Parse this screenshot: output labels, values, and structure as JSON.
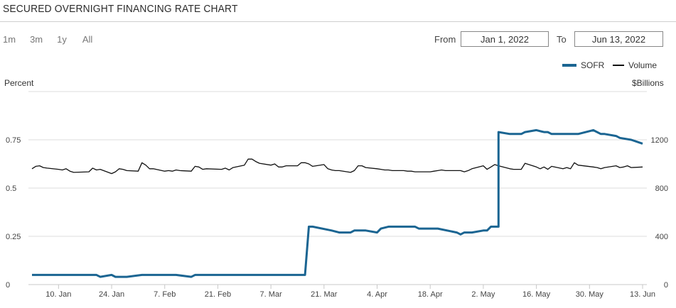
{
  "title": "SECURED OVERNIGHT FINANCING RATE CHART",
  "range_buttons": [
    "1m",
    "3m",
    "1y",
    "All"
  ],
  "date_range": {
    "from_label": "From",
    "from_value": "Jan 1, 2022",
    "to_label": "To",
    "to_value": "Jun 13, 2022"
  },
  "colors": {
    "sofr": "#1b6592",
    "volume": "#111111",
    "grid": "#dddddd"
  },
  "chart_data": {
    "type": "line",
    "ylabel_left": "Percent",
    "ylabel_right": "$Billions",
    "y_left_ticks": [
      "0",
      "0.25",
      "0.5",
      "0.75"
    ],
    "y_left_values": [
      0,
      0.25,
      0.5,
      0.75
    ],
    "y_left_range": [
      0,
      1.0
    ],
    "y_right_ticks": [
      "0",
      "400",
      "800",
      "1200"
    ],
    "y_right_values": [
      0,
      400,
      800,
      1200
    ],
    "y_right_range": [
      0,
      1600
    ],
    "x_ticks": [
      "10. Jan",
      "24. Jan",
      "7. Feb",
      "21. Feb",
      "7. Mar",
      "21. Mar",
      "4. Apr",
      "18. Apr",
      "2. May",
      "16. May",
      "30. May",
      "13. Jun"
    ],
    "x_tick_dates": [
      "2022-01-10",
      "2022-01-24",
      "2022-02-07",
      "2022-02-21",
      "2022-03-07",
      "2022-03-21",
      "2022-04-04",
      "2022-04-18",
      "2022-05-02",
      "2022-05-16",
      "2022-05-30",
      "2022-06-13"
    ],
    "x_range": [
      "2022-01-03",
      "2022-06-13"
    ],
    "legend_position": "top-right",
    "grid": "horizontal",
    "series": [
      {
        "name": "SOFR",
        "axis": "left",
        "points": [
          [
            "2022-01-03",
            0.05
          ],
          [
            "2022-01-10",
            0.05
          ],
          [
            "2022-01-20",
            0.05
          ],
          [
            "2022-01-21",
            0.04
          ],
          [
            "2022-01-24",
            0.05
          ],
          [
            "2022-01-25",
            0.04
          ],
          [
            "2022-01-27",
            0.04
          ],
          [
            "2022-01-28",
            0.04
          ],
          [
            "2022-02-01",
            0.05
          ],
          [
            "2022-02-10",
            0.05
          ],
          [
            "2022-02-14",
            0.04
          ],
          [
            "2022-02-15",
            0.05
          ],
          [
            "2022-03-01",
            0.05
          ],
          [
            "2022-03-16",
            0.05
          ],
          [
            "2022-03-17",
            0.3
          ],
          [
            "2022-03-18",
            0.3
          ],
          [
            "2022-03-23",
            0.28
          ],
          [
            "2022-03-25",
            0.27
          ],
          [
            "2022-03-28",
            0.27
          ],
          [
            "2022-03-29",
            0.28
          ],
          [
            "2022-04-01",
            0.28
          ],
          [
            "2022-04-04",
            0.27
          ],
          [
            "2022-04-05",
            0.29
          ],
          [
            "2022-04-07",
            0.3
          ],
          [
            "2022-04-13",
            0.3
          ],
          [
            "2022-04-14",
            0.3
          ],
          [
            "2022-04-15",
            0.29
          ],
          [
            "2022-04-20",
            0.29
          ],
          [
            "2022-04-25",
            0.27
          ],
          [
            "2022-04-26",
            0.26
          ],
          [
            "2022-04-27",
            0.27
          ],
          [
            "2022-04-29",
            0.27
          ],
          [
            "2022-05-02",
            0.28
          ],
          [
            "2022-05-03",
            0.28
          ],
          [
            "2022-05-04",
            0.3
          ],
          [
            "2022-05-05",
            0.3
          ],
          [
            "2022-05-06",
            0.3
          ],
          [
            "2022-05-06",
            0.79
          ],
          [
            "2022-05-09",
            0.78
          ],
          [
            "2022-05-10",
            0.78
          ],
          [
            "2022-05-12",
            0.78
          ],
          [
            "2022-05-13",
            0.79
          ],
          [
            "2022-05-16",
            0.8
          ],
          [
            "2022-05-18",
            0.79
          ],
          [
            "2022-05-19",
            0.79
          ],
          [
            "2022-05-20",
            0.78
          ],
          [
            "2022-05-27",
            0.78
          ],
          [
            "2022-05-31",
            0.8
          ],
          [
            "2022-06-02",
            0.78
          ],
          [
            "2022-06-03",
            0.78
          ],
          [
            "2022-06-06",
            0.77
          ],
          [
            "2022-06-07",
            0.76
          ],
          [
            "2022-06-10",
            0.75
          ],
          [
            "2022-06-13",
            0.73
          ]
        ]
      },
      {
        "name": "Volume",
        "axis": "right",
        "points": [
          [
            "2022-01-03",
            960
          ],
          [
            "2022-01-04",
            980
          ],
          [
            "2022-01-05",
            985
          ],
          [
            "2022-01-06",
            970
          ],
          [
            "2022-01-07",
            965
          ],
          [
            "2022-01-10",
            955
          ],
          [
            "2022-01-11",
            950
          ],
          [
            "2022-01-12",
            960
          ],
          [
            "2022-01-13",
            940
          ],
          [
            "2022-01-14",
            930
          ],
          [
            "2022-01-18",
            935
          ],
          [
            "2022-01-19",
            965
          ],
          [
            "2022-01-20",
            950
          ],
          [
            "2022-01-21",
            955
          ],
          [
            "2022-01-24",
            920
          ],
          [
            "2022-01-25",
            935
          ],
          [
            "2022-01-26",
            960
          ],
          [
            "2022-01-27",
            955
          ],
          [
            "2022-01-28",
            945
          ],
          [
            "2022-01-31",
            940
          ],
          [
            "2022-02-01",
            1010
          ],
          [
            "2022-02-02",
            990
          ],
          [
            "2022-02-03",
            960
          ],
          [
            "2022-02-04",
            960
          ],
          [
            "2022-02-07",
            940
          ],
          [
            "2022-02-08",
            945
          ],
          [
            "2022-02-09",
            940
          ],
          [
            "2022-02-10",
            950
          ],
          [
            "2022-02-11",
            945
          ],
          [
            "2022-02-14",
            940
          ],
          [
            "2022-02-15",
            980
          ],
          [
            "2022-02-16",
            975
          ],
          [
            "2022-02-17",
            955
          ],
          [
            "2022-02-18",
            960
          ],
          [
            "2022-02-22",
            955
          ],
          [
            "2022-02-23",
            965
          ],
          [
            "2022-02-24",
            950
          ],
          [
            "2022-02-25",
            970
          ],
          [
            "2022-02-28",
            990
          ],
          [
            "2022-03-01",
            1040
          ],
          [
            "2022-03-02",
            1040
          ],
          [
            "2022-03-03",
            1020
          ],
          [
            "2022-03-04",
            1005
          ],
          [
            "2022-03-07",
            990
          ],
          [
            "2022-03-08",
            1000
          ],
          [
            "2022-03-09",
            975
          ],
          [
            "2022-03-10",
            975
          ],
          [
            "2022-03-11",
            985
          ],
          [
            "2022-03-14",
            985
          ],
          [
            "2022-03-15",
            1010
          ],
          [
            "2022-03-16",
            1010
          ],
          [
            "2022-03-17",
            1000
          ],
          [
            "2022-03-18",
            980
          ],
          [
            "2022-03-21",
            995
          ],
          [
            "2022-03-22",
            960
          ],
          [
            "2022-03-23",
            950
          ],
          [
            "2022-03-24",
            945
          ],
          [
            "2022-03-25",
            945
          ],
          [
            "2022-03-28",
            930
          ],
          [
            "2022-03-29",
            945
          ],
          [
            "2022-03-30",
            985
          ],
          [
            "2022-03-31",
            985
          ],
          [
            "2022-04-01",
            970
          ],
          [
            "2022-04-04",
            960
          ],
          [
            "2022-04-05",
            955
          ],
          [
            "2022-04-06",
            950
          ],
          [
            "2022-04-07",
            950
          ],
          [
            "2022-04-08",
            945
          ],
          [
            "2022-04-11",
            945
          ],
          [
            "2022-04-12",
            940
          ],
          [
            "2022-04-13",
            940
          ],
          [
            "2022-04-14",
            935
          ],
          [
            "2022-04-18",
            935
          ],
          [
            "2022-04-19",
            940
          ],
          [
            "2022-04-20",
            945
          ],
          [
            "2022-04-21",
            950
          ],
          [
            "2022-04-22",
            945
          ],
          [
            "2022-04-25",
            945
          ],
          [
            "2022-04-26",
            945
          ],
          [
            "2022-04-27",
            935
          ],
          [
            "2022-04-28",
            945
          ],
          [
            "2022-04-29",
            960
          ],
          [
            "2022-05-02",
            985
          ],
          [
            "2022-05-03",
            955
          ],
          [
            "2022-05-04",
            975
          ],
          [
            "2022-05-05",
            995
          ],
          [
            "2022-05-06",
            985
          ],
          [
            "2022-05-09",
            960
          ],
          [
            "2022-05-10",
            955
          ],
          [
            "2022-05-11",
            955
          ],
          [
            "2022-05-12",
            955
          ],
          [
            "2022-05-13",
            1005
          ],
          [
            "2022-05-16",
            975
          ],
          [
            "2022-05-17",
            960
          ],
          [
            "2022-05-18",
            975
          ],
          [
            "2022-05-19",
            955
          ],
          [
            "2022-05-20",
            980
          ],
          [
            "2022-05-23",
            960
          ],
          [
            "2022-05-24",
            970
          ],
          [
            "2022-05-25",
            960
          ],
          [
            "2022-05-26",
            1010
          ],
          [
            "2022-05-27",
            990
          ],
          [
            "2022-05-31",
            975
          ],
          [
            "2022-06-01",
            970
          ],
          [
            "2022-06-02",
            960
          ],
          [
            "2022-06-03",
            970
          ],
          [
            "2022-06-06",
            985
          ],
          [
            "2022-06-07",
            970
          ],
          [
            "2022-06-08",
            975
          ],
          [
            "2022-06-09",
            985
          ],
          [
            "2022-06-10",
            970
          ],
          [
            "2022-06-13",
            975
          ]
        ]
      }
    ]
  }
}
